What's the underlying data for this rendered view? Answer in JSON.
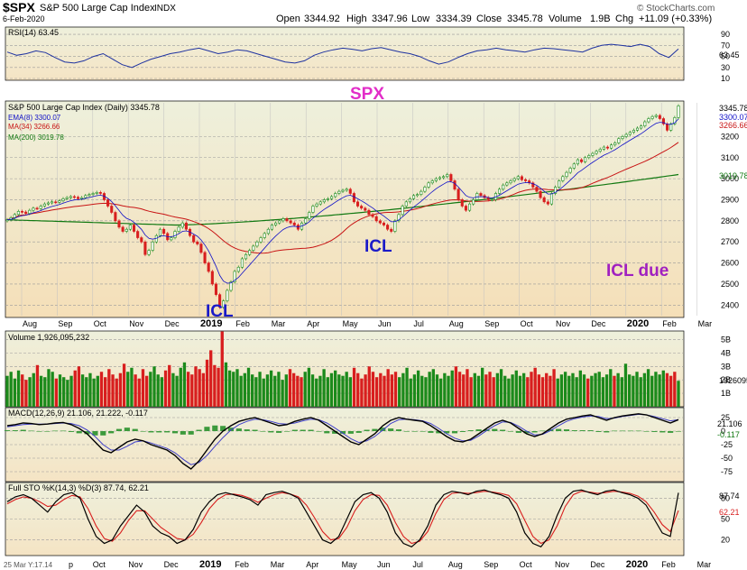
{
  "header": {
    "symbol": "$SPX",
    "name": "S&P 500 Large Cap Index",
    "exchange": "INDX",
    "date": "6-Feb-2020",
    "copyright": "© StockCharts.com",
    "open_label": "Open",
    "open": "3344.92",
    "high_label": "High",
    "high": "3347.96",
    "low_label": "Low",
    "low": "3334.39",
    "close_label": "Close",
    "close": "3345.78",
    "volume_label": "Volume",
    "volume": "1.9B",
    "chg_label": "Chg",
    "chg": "+11.09 (+0.33%)"
  },
  "colors": {
    "up": "#1b8a1b",
    "down": "#d81e1e",
    "rsi_line": "#1e32a0",
    "ema": "#1010c8",
    "ma34": "#c81414",
    "ma200": "#107810",
    "panel_bg_top": "#eef0dc",
    "panel_bg_bottom": "#f5dfb8",
    "annotation_blue": "#1a1ac8",
    "annotation_magenta": "#e22dc8",
    "annotation_purple": "#a020c0"
  },
  "chart_data": [
    {
      "type": "line",
      "panel": "rsi",
      "legend": "RSI(14) 63.45",
      "ylim": [
        10,
        100
      ],
      "ticks": [
        "90",
        "70",
        "50",
        "30",
        "10"
      ],
      "value_label": "63.45",
      "last_value": 63.45,
      "values": [
        58,
        52,
        55,
        60,
        57,
        48,
        40,
        38,
        42,
        50,
        55,
        45,
        35,
        30,
        38,
        45,
        50,
        55,
        58,
        62,
        65,
        60,
        55,
        58,
        62,
        60,
        55,
        50,
        45,
        40,
        38,
        42,
        52,
        58,
        62,
        65,
        63,
        60,
        64,
        66,
        62,
        58,
        55,
        50,
        42,
        36,
        40,
        48,
        55,
        60,
        62,
        65,
        62,
        60,
        58,
        62,
        65,
        64,
        62,
        60,
        58,
        65,
        70,
        72,
        70,
        68,
        72,
        68,
        55,
        48,
        63.45
      ]
    },
    {
      "type": "candlestick",
      "panel": "price",
      "legend": "S&P 500 Large Cap Index (Daily) 3345.78",
      "ylim": [
        2350,
        3360
      ],
      "ticks": [
        "3200",
        "3100",
        "3000",
        "2900",
        "2800",
        "2700",
        "2600",
        "2500",
        "2400"
      ],
      "x_labels": [
        "Aug",
        "Sep",
        "Oct",
        "Nov",
        "Dec",
        "2019",
        "Feb",
        "Mar",
        "Apr",
        "May",
        "Jun",
        "Jul",
        "Aug",
        "Sep",
        "Oct",
        "Nov",
        "Dec",
        "2020",
        "Feb",
        "Mar"
      ],
      "title_annotation": "SPX",
      "annotations": [
        "ICL",
        "ICL",
        "ICL due"
      ],
      "value_labels": [
        "3345.78",
        "3300.07",
        "3266.66",
        "3019.78"
      ],
      "closes": [
        2805,
        2815,
        2830,
        2845,
        2842,
        2835,
        2850,
        2860,
        2858,
        2870,
        2880,
        2885,
        2890,
        2888,
        2895,
        2905,
        2910,
        2915,
        2912,
        2905,
        2910,
        2920,
        2925,
        2930,
        2935,
        2930,
        2900,
        2870,
        2840,
        2800,
        2770,
        2750,
        2760,
        2780,
        2750,
        2720,
        2700,
        2640,
        2660,
        2700,
        2730,
        2760,
        2740,
        2710,
        2720,
        2750,
        2770,
        2790,
        2760,
        2730,
        2700,
        2690,
        2650,
        2600,
        2560,
        2500,
        2450,
        2390,
        2420,
        2470,
        2510,
        2560,
        2580,
        2620,
        2640,
        2660,
        2680,
        2700,
        2720,
        2740,
        2760,
        2780,
        2790,
        2800,
        2810,
        2800,
        2790,
        2780,
        2760,
        2790,
        2810,
        2840,
        2870,
        2880,
        2890,
        2900,
        2905,
        2915,
        2930,
        2940,
        2945,
        2950,
        2930,
        2890,
        2870,
        2860,
        2850,
        2830,
        2820,
        2800,
        2790,
        2780,
        2760,
        2750,
        2800,
        2830,
        2870,
        2890,
        2905,
        2920,
        2925,
        2940,
        2960,
        2980,
        2990,
        3000,
        3005,
        3010,
        3020,
        2990,
        2950,
        2900,
        2870,
        2850,
        2880,
        2900,
        2930,
        2920,
        2910,
        2900,
        2900,
        2930,
        2950,
        2970,
        2980,
        2990,
        3000,
        3010,
        2995,
        2990,
        2980,
        2960,
        2940,
        2910,
        2890,
        2880,
        2930,
        2960,
        2990,
        3010,
        3030,
        3050,
        3070,
        3090,
        3080,
        3100,
        3110,
        3120,
        3130,
        3140,
        3150,
        3145,
        3160,
        3170,
        3190,
        3200,
        3210,
        3220,
        3230,
        3240,
        3250,
        3270,
        3285,
        3295,
        3300,
        3285,
        3260,
        3230,
        3260,
        3290,
        3345.78
      ],
      "series": [
        {
          "name": "EMA(8) 3300.07",
          "last_value": 3300.07
        },
        {
          "name": "MA(34) 3266.66",
          "last_value": 3266.66
        },
        {
          "name": "MA(200) 3019.78",
          "last_value": 3019.78
        }
      ]
    },
    {
      "type": "bar",
      "panel": "volume",
      "legend": "Volume 1,926,095,232",
      "ylim": [
        0,
        5.5
      ],
      "ticks": [
        "5B",
        "4B",
        "3B",
        "2B",
        "1B"
      ],
      "value_label": "1926095232",
      "values": [
        2.3,
        2.6,
        2.1,
        2.7,
        2.4,
        2.0,
        2.2,
        2.5,
        3.1,
        2.3,
        2.2,
        2.8,
        2.6,
        2.1,
        2.4,
        2.2,
        2.0,
        2.3,
        2.7,
        3.0,
        2.4,
        2.2,
        2.5,
        2.1,
        2.3,
        2.6,
        2.2,
        2.8,
        2.4,
        2.1,
        2.5,
        3.2,
        2.6,
        2.9,
        2.4,
        2.1,
        2.8,
        2.3,
        2.6,
        3.0,
        2.4,
        2.2,
        2.7,
        3.1,
        2.5,
        2.3,
        2.9,
        3.3,
        2.6,
        2.4,
        3.0,
        2.8,
        2.5,
        3.5,
        4.2,
        3.1,
        2.9,
        5.6,
        3.3,
        2.7,
        2.6,
        2.8,
        2.3,
        2.5,
        2.9,
        2.4,
        2.2,
        2.6,
        2.1,
        2.4,
        2.7,
        2.3,
        2.6,
        2.0,
        2.4,
        2.8,
        2.5,
        2.3,
        2.2,
        2.6,
        2.9,
        2.4,
        2.1,
        2.3,
        2.8,
        2.2,
        2.5,
        2.7,
        2.4,
        2.3,
        2.6,
        2.2,
        2.9,
        2.5,
        2.1,
        2.4,
        3.0,
        2.6,
        2.2,
        2.5,
        2.3,
        2.8,
        2.4,
        2.6,
        2.2,
        2.5,
        2.9,
        2.1,
        2.4,
        2.7,
        2.3,
        2.2,
        2.6,
        2.8,
        2.4,
        2.1,
        2.5,
        2.3,
        2.7,
        3.0,
        2.6,
        2.4,
        2.8,
        2.2,
        2.5,
        2.3,
        2.9,
        2.4,
        2.6,
        2.2,
        2.5,
        2.8,
        2.3,
        2.1,
        2.4,
        2.7,
        2.3,
        2.5,
        2.2,
        2.6,
        2.9,
        2.4,
        2.2,
        2.5,
        2.3,
        2.8,
        2.1,
        2.4,
        2.6,
        2.3,
        2.5,
        2.2,
        2.7,
        2.4,
        2.1,
        2.3,
        2.5,
        2.6,
        2.2,
        2.4,
        2.8,
        2.3,
        2.5,
        2.2,
        3.2,
        2.4,
        2.3,
        2.6,
        2.2,
        2.5,
        2.8,
        2.3,
        2.6,
        2.4,
        2.7,
        2.5,
        2.3,
        2.6,
        1.93
      ]
    },
    {
      "type": "line",
      "panel": "macd",
      "legend": "MACD(12,26,9) 21.106, 21.222, -0.117",
      "ylim": [
        -90,
        40
      ],
      "ticks": [
        "25",
        "0",
        "-25",
        "-50",
        "-75"
      ],
      "value_labels": [
        "21.106",
        "-0.117"
      ],
      "series": [
        {
          "name": "MACD",
          "values": [
            10,
            12,
            15,
            14,
            12,
            13,
            15,
            16,
            12,
            5,
            -5,
            -20,
            -35,
            -40,
            -30,
            -20,
            -15,
            -18,
            -25,
            -30,
            -35,
            -45,
            -60,
            -70,
            -55,
            -35,
            -15,
            0,
            10,
            18,
            22,
            25,
            20,
            15,
            10,
            12,
            18,
            22,
            25,
            20,
            10,
            0,
            -10,
            -20,
            -25,
            -15,
            -5,
            10,
            20,
            25,
            22,
            20,
            18,
            10,
            0,
            -10,
            -18,
            -20,
            -15,
            -5,
            5,
            15,
            20,
            15,
            5,
            -5,
            -10,
            -5,
            5,
            15,
            22,
            25,
            28,
            30,
            25,
            20,
            25,
            28,
            30,
            32,
            30,
            25,
            20,
            15,
            21.106
          ]
        },
        {
          "name": "Signal",
          "values": [
            8,
            10,
            12,
            13,
            13,
            13,
            14,
            15,
            14,
            10,
            2,
            -10,
            -25,
            -35,
            -35,
            -28,
            -20,
            -18,
            -22,
            -27,
            -32,
            -40,
            -52,
            -62,
            -58,
            -45,
            -28,
            -12,
            2,
            12,
            18,
            22,
            21,
            18,
            14,
            13,
            15,
            19,
            22,
            21,
            15,
            6,
            -4,
            -14,
            -21,
            -18,
            -10,
            2,
            14,
            21,
            22,
            21,
            19,
            14,
            5,
            -5,
            -13,
            -18,
            -17,
            -9,
            1,
            10,
            17,
            16,
            9,
            0,
            -7,
            -6,
            1,
            10,
            18,
            23,
            26,
            28,
            27,
            23,
            24,
            27,
            29,
            31,
            30,
            27,
            23,
            19,
            21.222
          ]
        }
      ]
    },
    {
      "type": "line",
      "panel": "stochastic",
      "legend": "Full STO %K(14,3) %D(3) 87.74, 62.21",
      "ylim": [
        0,
        100
      ],
      "ticks": [
        "80",
        "50",
        "20"
      ],
      "value_labels": [
        "87.74",
        "62.21"
      ],
      "series": [
        {
          "name": "%K",
          "values": [
            75,
            82,
            85,
            80,
            70,
            60,
            75,
            85,
            88,
            80,
            50,
            25,
            15,
            20,
            40,
            55,
            70,
            60,
            40,
            30,
            25,
            15,
            20,
            35,
            60,
            75,
            85,
            88,
            85,
            82,
            78,
            70,
            85,
            88,
            90,
            86,
            80,
            60,
            40,
            20,
            15,
            25,
            50,
            75,
            85,
            88,
            80,
            60,
            30,
            15,
            10,
            20,
            40,
            70,
            85,
            90,
            88,
            85,
            90,
            92,
            88,
            85,
            80,
            60,
            30,
            15,
            10,
            25,
            55,
            80,
            90,
            92,
            88,
            85,
            90,
            92,
            88,
            85,
            80,
            70,
            50,
            30,
            25,
            87.74
          ]
        },
        {
          "name": "%D",
          "values": [
            72,
            78,
            82,
            80,
            75,
            68,
            70,
            78,
            84,
            82,
            65,
            40,
            22,
            18,
            30,
            48,
            62,
            62,
            50,
            38,
            30,
            22,
            20,
            28,
            45,
            65,
            78,
            85,
            86,
            84,
            80,
            74,
            80,
            85,
            88,
            86,
            82,
            70,
            52,
            32,
            20,
            22,
            38,
            62,
            78,
            85,
            84,
            70,
            45,
            25,
            15,
            18,
            32,
            58,
            78,
            87,
            88,
            87,
            88,
            90,
            89,
            87,
            84,
            72,
            48,
            25,
            15,
            20,
            40,
            68,
            85,
            90,
            89,
            87,
            88,
            90,
            89,
            87,
            83,
            75,
            60,
            42,
            32,
            62.21
          ]
        }
      ]
    },
    {
      "type": "axis",
      "panel": "bottom-axis",
      "x_labels": [
        "25 Mar Y:17.14",
        "p",
        "Oct",
        "Nov",
        "Dec",
        "2019",
        "Feb",
        "Mar",
        "Apr",
        "May",
        "Jun",
        "Jul",
        "Aug",
        "Sep",
        "Oct",
        "Nov",
        "Dec",
        "2020",
        "Feb",
        "Mar"
      ]
    }
  ]
}
